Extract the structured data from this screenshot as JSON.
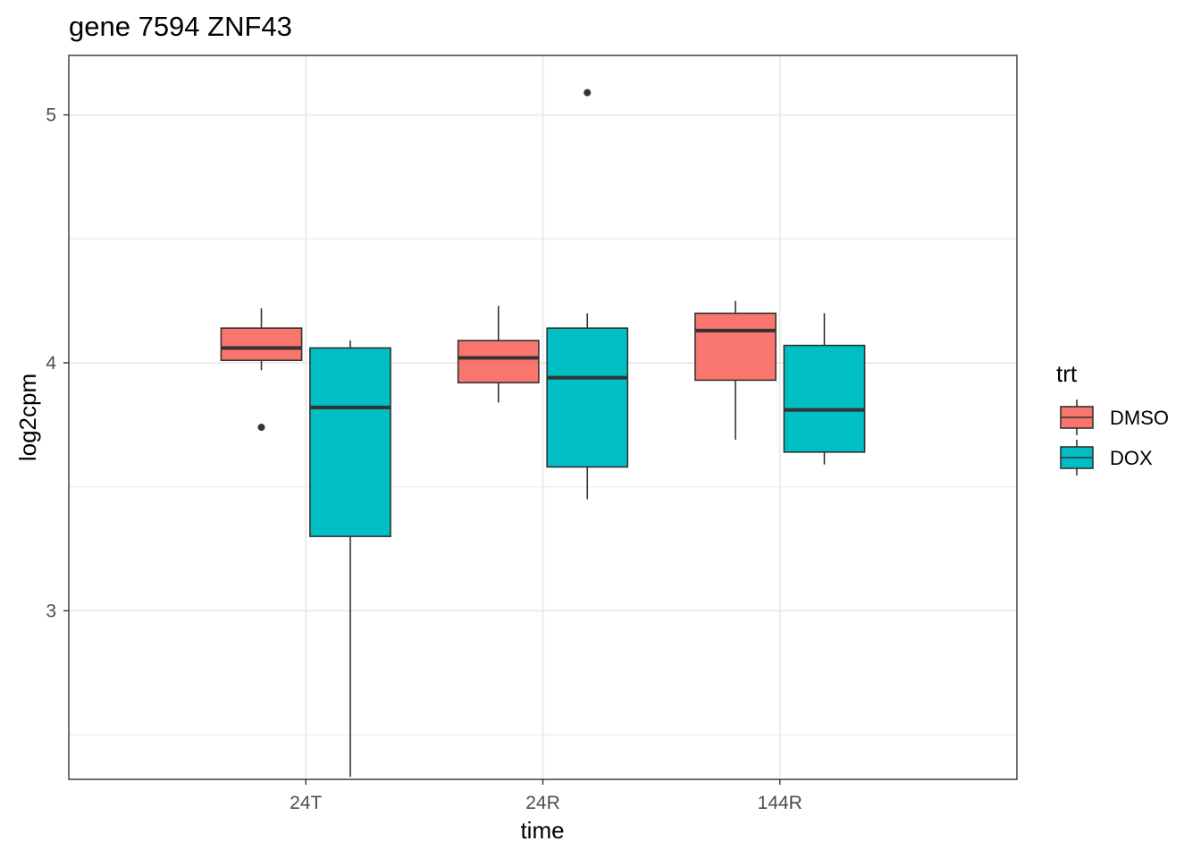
{
  "chart_data": {
    "type": "boxplot",
    "title": "gene 7594 ZNF43",
    "xlabel": "time",
    "ylabel": "log2cpm",
    "ylim": [
      2.32,
      5.24
    ],
    "y_major_ticks": [
      3,
      4,
      5
    ],
    "y_minor_ticks": [
      2.5,
      3.5,
      4.5
    ],
    "grid": true,
    "categories": [
      "24T",
      "24R",
      "144R"
    ],
    "legend": {
      "title": "trt",
      "position": "right"
    },
    "series": [
      {
        "name": "DMSO",
        "color": "#F8766D",
        "boxes": [
          {
            "category": "24T",
            "whisker_low": 3.97,
            "q1": 4.01,
            "median": 4.06,
            "q3": 4.14,
            "whisker_high": 4.22,
            "outliers": [
              3.74
            ]
          },
          {
            "category": "24R",
            "whisker_low": 3.84,
            "q1": 3.92,
            "median": 4.02,
            "q3": 4.09,
            "whisker_high": 4.23,
            "outliers": []
          },
          {
            "category": "144R",
            "whisker_low": 3.69,
            "q1": 3.93,
            "median": 4.13,
            "q3": 4.2,
            "whisker_high": 4.25,
            "outliers": []
          }
        ]
      },
      {
        "name": "DOX",
        "color": "#00BFC4",
        "boxes": [
          {
            "category": "24T",
            "whisker_low": 2.33,
            "q1": 3.3,
            "median": 3.82,
            "q3": 4.06,
            "whisker_high": 4.09,
            "outliers": []
          },
          {
            "category": "24R",
            "whisker_low": 3.45,
            "q1": 3.58,
            "median": 3.94,
            "q3": 4.14,
            "whisker_high": 4.2,
            "outliers": [
              5.09
            ]
          },
          {
            "category": "144R",
            "whisker_low": 3.59,
            "q1": 3.64,
            "median": 3.81,
            "q3": 4.07,
            "whisker_high": 4.2,
            "outliers": []
          }
        ]
      }
    ]
  }
}
